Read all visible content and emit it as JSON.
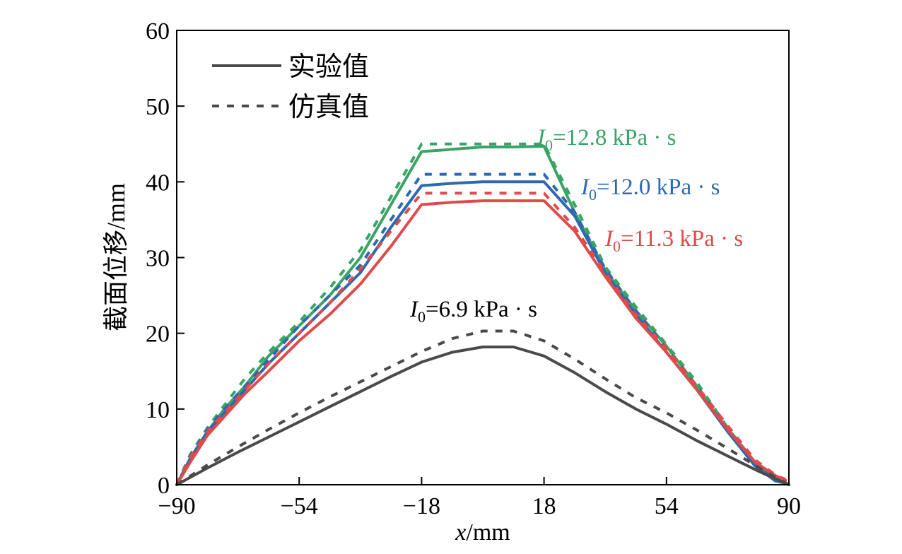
{
  "chart_data": {
    "type": "line",
    "xlabel_italic": "x",
    "xlabel_unit": "/mm",
    "ylabel": "截面位移/mm",
    "xlim": [
      -90,
      90
    ],
    "ylim": [
      0,
      60
    ],
    "xticks": [
      -90,
      -54,
      -18,
      18,
      54,
      90
    ],
    "yticks": [
      0,
      10,
      20,
      30,
      40,
      50,
      60
    ],
    "xtick_labels": [
      "−90",
      "−54",
      "−18",
      "18",
      "54",
      "90"
    ],
    "ytick_labels": [
      "0",
      "10",
      "20",
      "30",
      "40",
      "50",
      "60"
    ],
    "legend": {
      "placement": "top-left",
      "entries": [
        {
          "label": "实验值",
          "style": "solid"
        },
        {
          "label": "仿真值",
          "style": "dashed"
        }
      ]
    },
    "groups": [
      {
        "label_var": "I",
        "label_sub": "0",
        "label_value": "=12.8 kPa · s",
        "color": "#3aa466",
        "experimental": {
          "x": [
            -90,
            -86,
            -81,
            -76,
            -70,
            -63,
            -54,
            -45,
            -36,
            -27,
            -18,
            -9,
            0,
            9,
            18,
            27,
            36,
            45,
            54,
            63,
            72,
            80,
            86,
            89
          ],
          "y": [
            0,
            3.5,
            7,
            10,
            13,
            17,
            21,
            25,
            30,
            37,
            44,
            44.3,
            44.6,
            44.6,
            44.7,
            36,
            28.3,
            23,
            18.3,
            13,
            7,
            2.8,
            0.8,
            0.3
          ]
        },
        "simulated": {
          "x": [
            -90,
            -86,
            -81,
            -76,
            -70,
            -63,
            -54,
            -45,
            -36,
            -27,
            -18,
            -9,
            0,
            9,
            18,
            27,
            36,
            45,
            54,
            63,
            72,
            80,
            86,
            89
          ],
          "y": [
            0,
            4,
            7.5,
            10.5,
            14,
            17.5,
            21.5,
            26,
            31,
            38,
            45,
            45,
            45,
            45,
            45,
            37,
            28.8,
            23.5,
            18.5,
            13.5,
            7.5,
            3,
            1,
            0.5
          ]
        }
      },
      {
        "label_var": "I",
        "label_sub": "0",
        "label_value": "=12.0 kPa · s",
        "color": "#2e68b0",
        "experimental": {
          "x": [
            -90,
            -86,
            -81,
            -76,
            -70,
            -63,
            -54,
            -45,
            -36,
            -27,
            -18,
            -9,
            0,
            9,
            18,
            27,
            36,
            45,
            54,
            63,
            72,
            80,
            86,
            89
          ],
          "y": [
            0,
            3.5,
            7,
            9.5,
            12.5,
            16,
            20,
            24,
            28,
            34,
            39.5,
            39.8,
            40,
            40,
            40,
            35.5,
            28,
            22.5,
            17.5,
            12.5,
            7,
            2.5,
            0.5,
            0.2
          ]
        },
        "simulated": {
          "x": [
            -90,
            -86,
            -81,
            -76,
            -70,
            -63,
            -54,
            -45,
            -36,
            -27,
            -18,
            -9,
            0,
            9,
            18,
            27,
            36,
            45,
            54,
            63,
            72,
            80,
            86,
            89
          ],
          "y": [
            0,
            3.8,
            7.3,
            10,
            13,
            16.5,
            21,
            25,
            29,
            35,
            41,
            41,
            41,
            41,
            41,
            36,
            28.5,
            23,
            18,
            13,
            7.5,
            3,
            1,
            0.4
          ]
        }
      },
      {
        "label_var": "I",
        "label_sub": "0",
        "label_value": "=11.3 kPa · s",
        "color": "#e04a4a",
        "experimental": {
          "x": [
            -90,
            -86,
            -81,
            -76,
            -70,
            -63,
            -54,
            -45,
            -36,
            -27,
            -18,
            -9,
            0,
            9,
            18,
            27,
            36,
            45,
            54,
            63,
            72,
            80,
            86,
            89
          ],
          "y": [
            0,
            3,
            6.5,
            9,
            12,
            15,
            19,
            22.5,
            26.5,
            31.5,
            37,
            37.3,
            37.5,
            37.5,
            37.5,
            33.5,
            27.5,
            22,
            17.5,
            12.5,
            7.3,
            3,
            1.2,
            0.6
          ]
        },
        "simulated": {
          "x": [
            -90,
            -86,
            -81,
            -76,
            -70,
            -63,
            -54,
            -45,
            -36,
            -27,
            -18,
            -9,
            0,
            9,
            18,
            27,
            36,
            45,
            54,
            63,
            72,
            80,
            86,
            89
          ],
          "y": [
            0,
            3.6,
            7,
            9.5,
            12.5,
            16,
            20,
            24,
            28.5,
            33.5,
            38.5,
            38.5,
            38.5,
            38.5,
            38.5,
            34,
            28,
            22.5,
            18,
            13,
            7.8,
            3.3,
            1.3,
            0.7
          ]
        }
      },
      {
        "label_var": "I",
        "label_sub": "0",
        "label_value": "=6.9 kPa · s",
        "color": "#4a4a4a",
        "experimental": {
          "x": [
            -90,
            -81,
            -72,
            -63,
            -54,
            -45,
            -36,
            -27,
            -18,
            -9,
            0,
            9,
            18,
            27,
            36,
            45,
            54,
            63,
            72,
            81,
            90
          ],
          "y": [
            0,
            2.2,
            4.3,
            6.3,
            8.3,
            10.3,
            12.3,
            14.3,
            16.2,
            17.5,
            18.2,
            18.2,
            17,
            14.8,
            12.3,
            10,
            8,
            5.8,
            3.8,
            1.8,
            0
          ]
        },
        "simulated": {
          "x": [
            -90,
            -81,
            -72,
            -63,
            -54,
            -45,
            -36,
            -27,
            -18,
            -9,
            0,
            9,
            18,
            27,
            36,
            45,
            54,
            63,
            72,
            81,
            90
          ],
          "y": [
            0,
            2.6,
            5,
            7.3,
            9.5,
            11.6,
            13.6,
            15.6,
            17.6,
            19.3,
            20.3,
            20.3,
            19,
            16.6,
            14,
            11.5,
            9.5,
            7.2,
            4.8,
            2.3,
            0
          ]
        }
      }
    ]
  }
}
